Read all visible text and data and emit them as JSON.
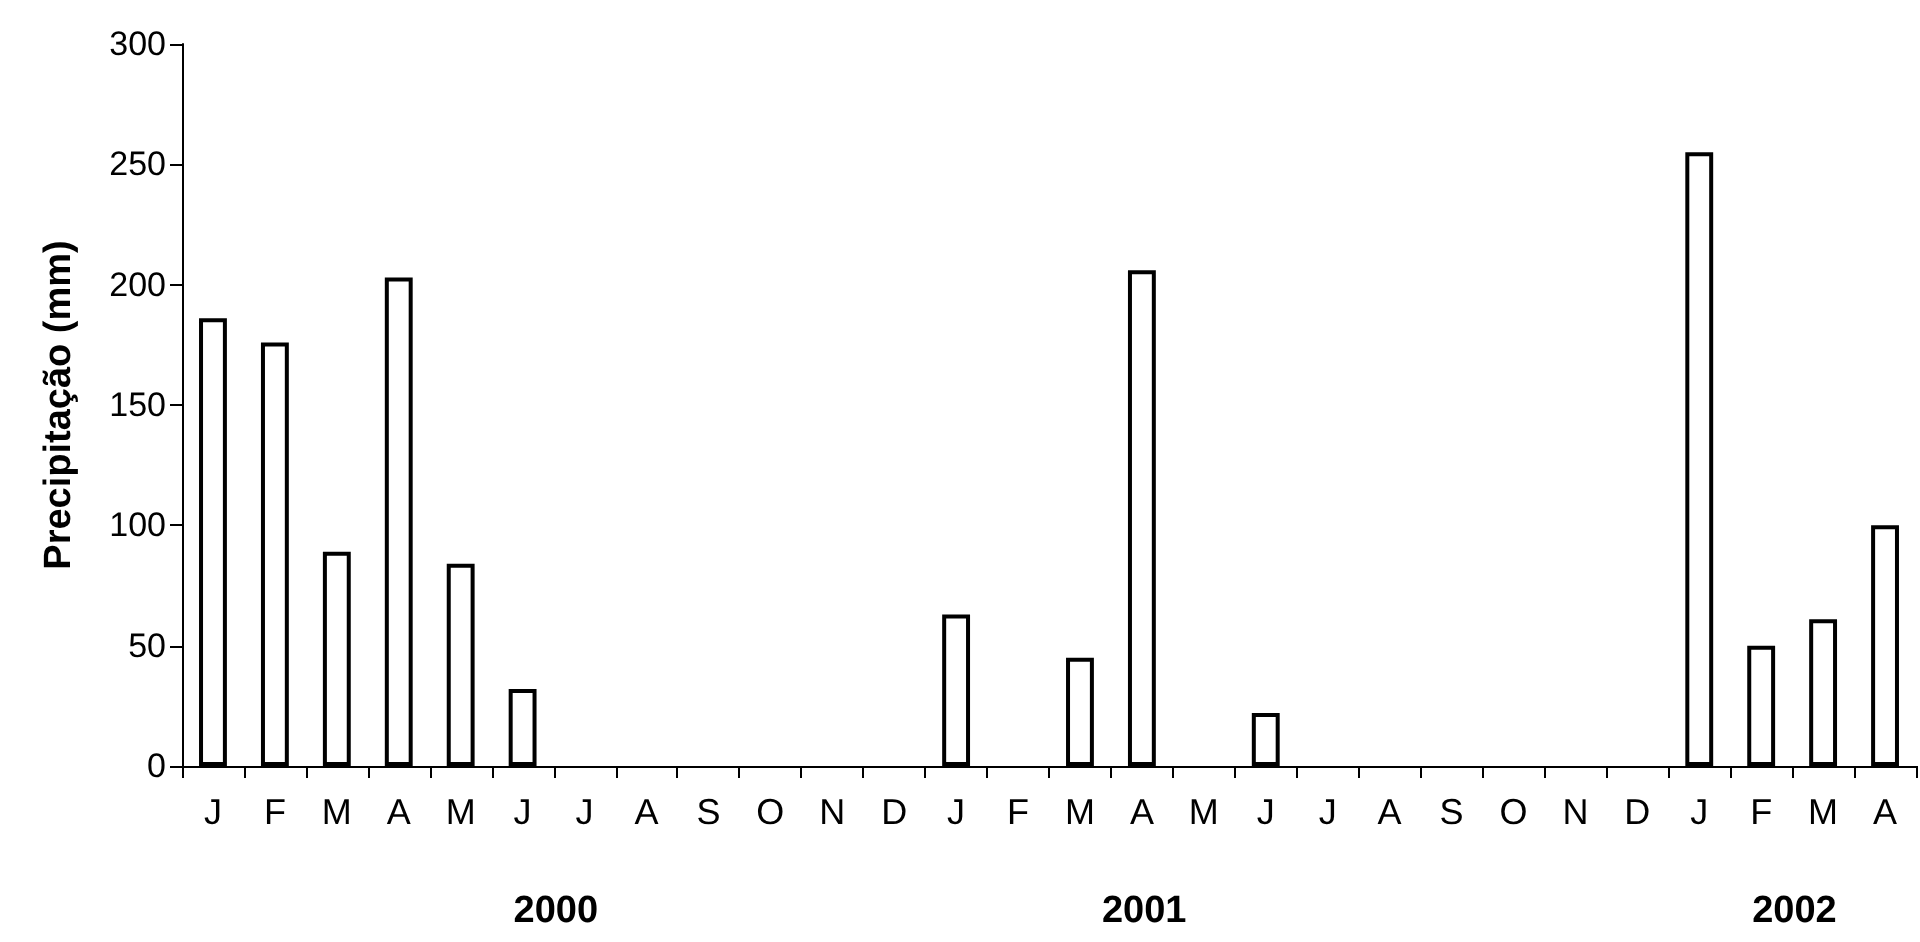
{
  "chart_data": {
    "type": "bar",
    "ylabel": "Precipitação (mm)",
    "categories": [
      "J",
      "F",
      "M",
      "A",
      "M",
      "J",
      "J",
      "A",
      "S",
      "O",
      "N",
      "D",
      "J",
      "F",
      "M",
      "A",
      "M",
      "J",
      "J",
      "A",
      "S",
      "O",
      "N",
      "D",
      "J",
      "F",
      "M",
      "A"
    ],
    "values": [
      186,
      176,
      89,
      203,
      84,
      32,
      null,
      null,
      null,
      null,
      null,
      null,
      63,
      null,
      45,
      206,
      null,
      22,
      null,
      null,
      null,
      null,
      null,
      null,
      255,
      50,
      61,
      100
    ],
    "color": "#ffffff",
    "ylim": [
      0,
      300
    ],
    "yticks": [
      0,
      50,
      100,
      150,
      200,
      250,
      300
    ],
    "grid": false,
    "annotations": [
      "2000",
      "2001",
      "2002"
    ]
  }
}
